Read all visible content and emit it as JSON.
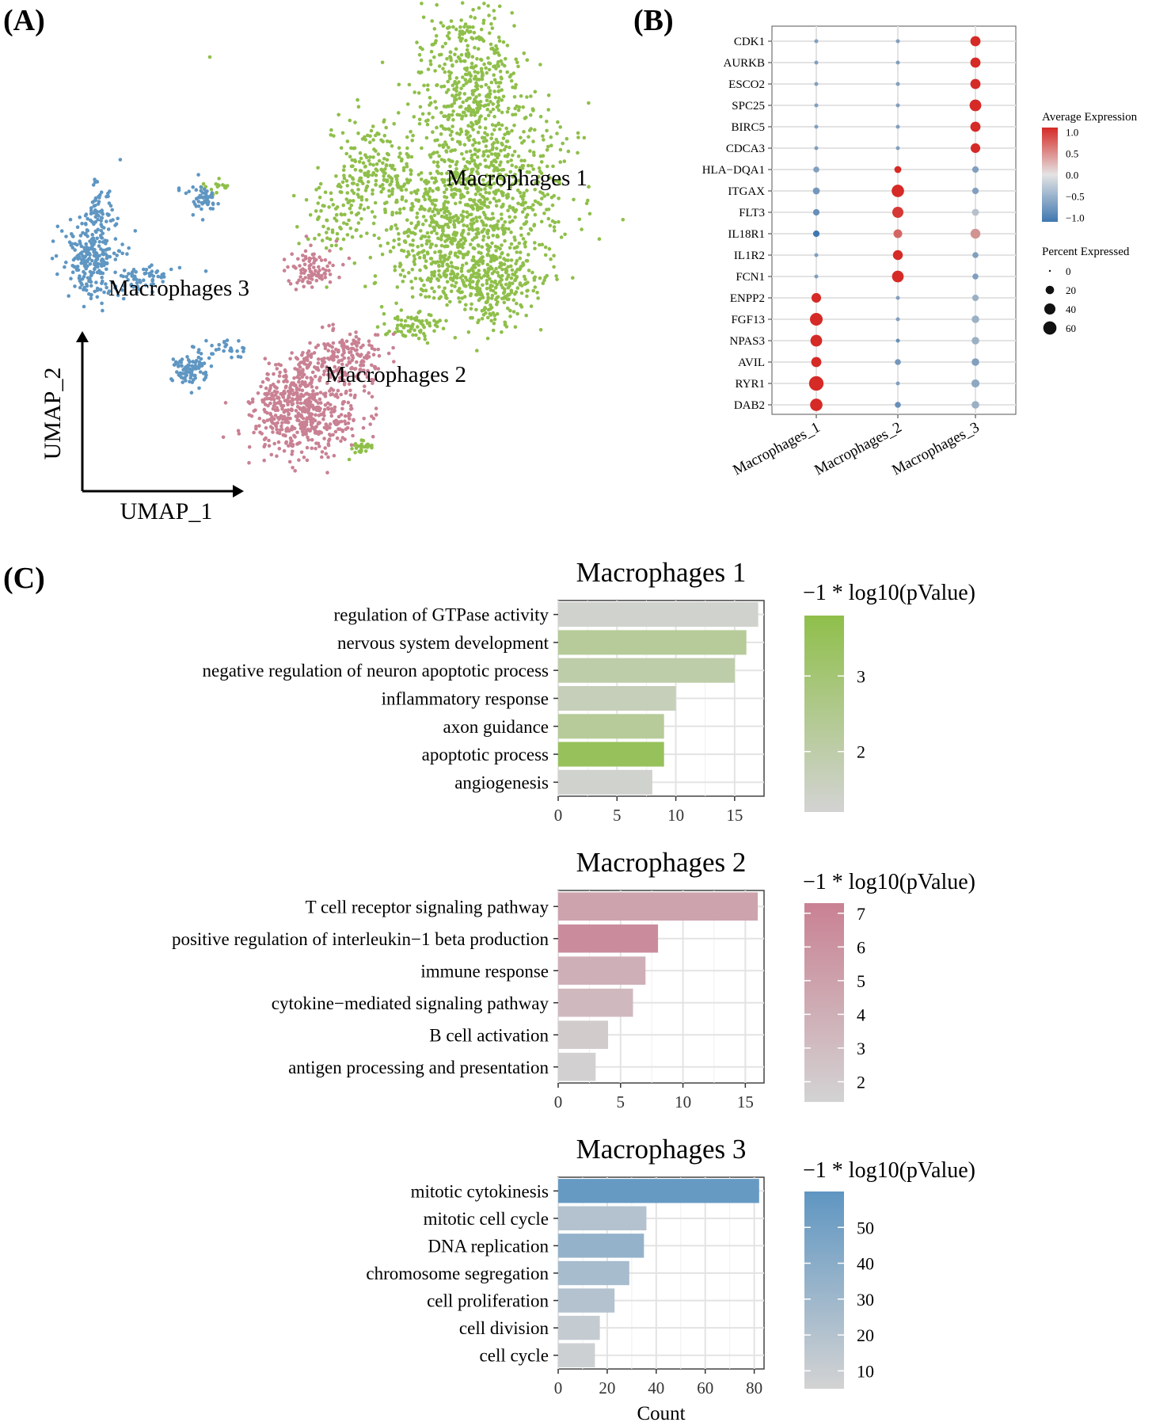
{
  "panel_labels": {
    "a": "(A)",
    "b": "(B)",
    "c": "(C)"
  },
  "colors": {
    "mac1": "#8fbf4a",
    "mac2": "#c98193",
    "mac3": "#5f96c2",
    "bar_low": "#d3d3d3",
    "dot_red": "#d52a26",
    "dot_blue": "#3f77b0",
    "grid": "#e3e3e3",
    "axis": "#333333"
  },
  "chart_data": [
    {
      "id": "umap",
      "type": "scatter",
      "title": "",
      "xlabel": "UMAP_1",
      "ylabel": "UMAP_2",
      "cluster_labels": [
        "Macrophages 1",
        "Macrophages 2",
        "Macrophages 3"
      ]
    },
    {
      "id": "dotplot",
      "type": "scatter",
      "subtype": "dot-plot",
      "genes": [
        "CDK1",
        "AURKB",
        "ESCO2",
        "SPC25",
        "BIRC5",
        "CDCA3",
        "HLA−DQA1",
        "ITGAX",
        "FLT3",
        "IL18R1",
        "IL1R2",
        "FCN1",
        "ENPP2",
        "FGF13",
        "NPAS3",
        "AVIL",
        "RYR1",
        "DAB2"
      ],
      "groups": [
        "Macrophages_1",
        "Macrophages_2",
        "Macrophages_3"
      ],
      "avg_expression": [
        [
          -0.6,
          -0.6,
          1.1
        ],
        [
          -0.6,
          -0.6,
          1.1
        ],
        [
          -0.6,
          -0.6,
          1.1
        ],
        [
          -0.6,
          -0.6,
          1.2
        ],
        [
          -0.6,
          -0.6,
          1.1
        ],
        [
          -0.6,
          -0.6,
          1.1
        ],
        [
          -0.6,
          1.1,
          -0.6
        ],
        [
          -0.7,
          1.2,
          -0.6
        ],
        [
          -0.8,
          1.0,
          -0.2
        ],
        [
          -1.2,
          0.7,
          0.4
        ],
        [
          -0.6,
          1.1,
          -0.6
        ],
        [
          -0.6,
          1.1,
          -0.6
        ],
        [
          1.1,
          -0.6,
          -0.4
        ],
        [
          1.1,
          -0.6,
          -0.4
        ],
        [
          1.1,
          -0.8,
          -0.4
        ],
        [
          1.1,
          -0.7,
          -0.6
        ],
        [
          1.2,
          -0.6,
          -0.5
        ],
        [
          1.1,
          -0.8,
          -0.4
        ]
      ],
      "pct_expressed": [
        [
          2,
          2,
          32
        ],
        [
          2,
          2,
          32
        ],
        [
          2,
          2,
          32
        ],
        [
          2,
          2,
          45
        ],
        [
          2,
          2,
          32
        ],
        [
          2,
          2,
          28
        ],
        [
          8,
          12,
          10
        ],
        [
          12,
          52,
          10
        ],
        [
          10,
          40,
          12
        ],
        [
          10,
          22,
          30
        ],
        [
          2,
          30,
          8
        ],
        [
          2,
          45,
          8
        ],
        [
          28,
          2,
          10
        ],
        [
          55,
          2,
          15
        ],
        [
          45,
          2,
          15
        ],
        [
          32,
          8,
          15
        ],
        [
          75,
          2,
          18
        ],
        [
          52,
          8,
          15
        ]
      ],
      "legend_color_title": "Average Expression",
      "legend_color_ticks": [
        "1.0",
        "0.5",
        "0.0",
        "−0.5",
        "−1.0"
      ],
      "legend_color_values": [
        1.0,
        0.5,
        0.0,
        -0.5,
        -1.0
      ],
      "legend_size_title": "Percent Expressed",
      "legend_size_ticks": [
        "0",
        "20",
        "40",
        "60"
      ],
      "legend_size_values": [
        0,
        20,
        40,
        60
      ]
    },
    {
      "id": "go1",
      "type": "bar",
      "orientation": "horizontal",
      "title": "Macrophages 1",
      "categories": [
        "regulation of GTPase activity",
        "nervous system development",
        "negative regulation of neuron apoptotic process",
        "inflammatory response",
        "axon guidance",
        "apoptotic process",
        "angiogenesis"
      ],
      "values": [
        17,
        16,
        15,
        10,
        9,
        9,
        8
      ],
      "color_values": [
        1.3,
        2.3,
        2.0,
        1.7,
        2.3,
        3.5,
        1.3
      ],
      "xlim": [
        0,
        17.5
      ],
      "xticks": [
        0,
        5,
        10,
        15
      ],
      "xticklabels": [
        "0",
        "5",
        "10",
        "15"
      ],
      "colorbar_title": "−1 * log10(pValue)",
      "colorbar_range": [
        1.2,
        3.8
      ],
      "colorbar_ticks": [
        2,
        3
      ],
      "colorbar_ticklabels": [
        "2",
        "3"
      ],
      "xlabel": ""
    },
    {
      "id": "go2",
      "type": "bar",
      "orientation": "horizontal",
      "title": "Macrophages 2",
      "categories": [
        "T cell receptor signaling pathway",
        "positive regulation of interleukin−1 beta production",
        "immune response",
        "cytokine−mediated signaling pathway",
        "B cell activation",
        "antigen processing and presentation"
      ],
      "values": [
        16,
        8,
        7,
        6,
        4,
        3
      ],
      "color_values": [
        4.8,
        6.5,
        4.0,
        3.3,
        2.0,
        1.6
      ],
      "xlim": [
        0,
        16.5
      ],
      "xticks": [
        0,
        5,
        10,
        15
      ],
      "xticklabels": [
        "0",
        "5",
        "10",
        "15"
      ],
      "colorbar_title": "−1 * log10(pValue)",
      "colorbar_range": [
        1.4,
        7.3
      ],
      "colorbar_ticks": [
        2,
        3,
        4,
        5,
        6,
        7
      ],
      "colorbar_ticklabels": [
        "2",
        "3",
        "4",
        "5",
        "6",
        "7"
      ],
      "xlabel": ""
    },
    {
      "id": "go3",
      "type": "bar",
      "orientation": "horizontal",
      "title": "Macrophages 3",
      "categories": [
        "mitotic cytokinesis",
        "mitotic cell cycle",
        "DNA replication",
        "chromosome segregation",
        "cell proliferation",
        "cell division",
        "cell cycle"
      ],
      "values": [
        82,
        36,
        35,
        29,
        23,
        17,
        15
      ],
      "color_values": [
        56,
        20,
        35,
        26,
        20,
        12,
        8
      ],
      "xlim": [
        0,
        84
      ],
      "xticks": [
        0,
        20,
        40,
        60,
        80
      ],
      "xticklabels": [
        "0",
        "20",
        "40",
        "60",
        "80"
      ],
      "colorbar_title": "−1 * log10(pValue)",
      "colorbar_range": [
        5,
        60
      ],
      "colorbar_ticks": [
        10,
        20,
        30,
        40,
        50
      ],
      "colorbar_ticklabels": [
        "10",
        "20",
        "30",
        "40",
        "50"
      ],
      "xlabel": "Count"
    }
  ]
}
